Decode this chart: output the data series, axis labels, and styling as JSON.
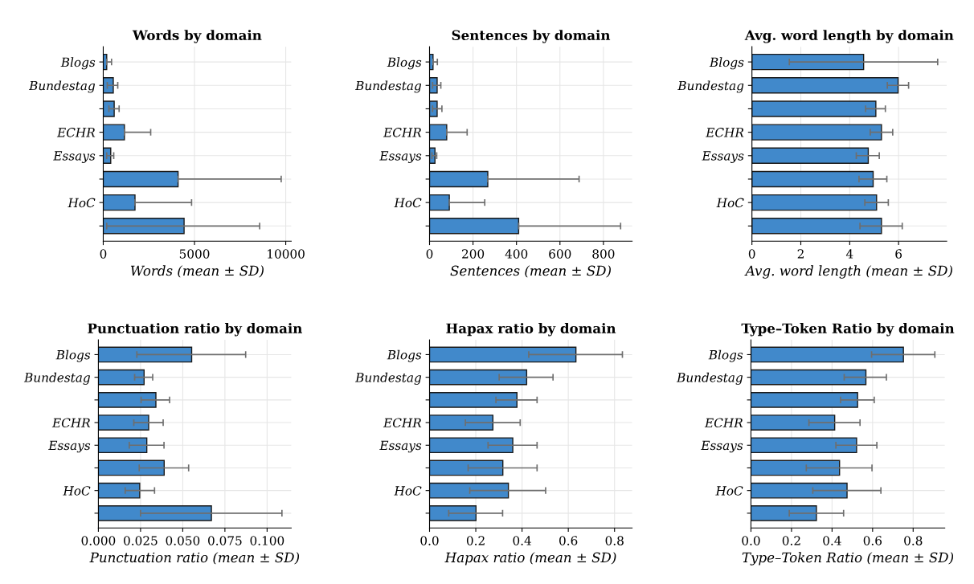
{
  "chart_data": [
    {
      "type": "bar",
      "orientation": "horizontal",
      "title": "Words by domain",
      "xlabel": "Words (mean ± SD)",
      "categories": [
        "Blogs",
        "Bundestag",
        null,
        "ECHR",
        "Essays",
        null,
        "HoC",
        null
      ],
      "color": "#4189cb",
      "values": [
        190,
        550,
        600,
        1160,
        410,
        4100,
        1740,
        4430
      ],
      "errors": [
        [
          190,
          455
        ],
        [
          220,
          795
        ],
        [
          310,
          870
        ],
        [
          1160,
          2600
        ],
        [
          190,
          575
        ],
        [
          4100,
          9750
        ],
        [
          1740,
          4840
        ],
        [
          190,
          8570
        ]
      ],
      "xlim": [
        0,
        10300
      ],
      "xticks": [
        0,
        5000,
        10000
      ],
      "grid": true
    },
    {
      "type": "bar",
      "orientation": "horizontal",
      "title": "Sentences by domain",
      "xlabel": "Sentences (mean ± SD)",
      "categories": [
        "Blogs",
        "Bundestag",
        null,
        "ECHR",
        "Essays",
        null,
        "HoC",
        null
      ],
      "color": "#4189cb",
      "values": [
        16,
        35,
        35,
        79,
        25,
        268,
        91,
        410
      ],
      "errors": [
        [
          16,
          36
        ],
        [
          14,
          52
        ],
        [
          14,
          57
        ],
        [
          79,
          173
        ],
        [
          11,
          33
        ],
        [
          268,
          688
        ],
        [
          91,
          254
        ],
        [
          410,
          879
        ]
      ],
      "xlim": [
        0,
        932
      ],
      "xticks": [
        0,
        200,
        400,
        600,
        800
      ],
      "grid": true
    },
    {
      "type": "bar",
      "orientation": "horizontal",
      "title": "Avg. word length by domain",
      "xlabel": "Avg. word length (mean ± SD)",
      "categories": [
        "Blogs",
        "Bundestag",
        null,
        "ECHR",
        "Essays",
        null,
        "HoC",
        null
      ],
      "color": "#4189cb",
      "values": [
        4.57,
        5.98,
        5.07,
        5.3,
        4.76,
        4.96,
        5.1,
        5.3
      ],
      "errors": [
        [
          1.53,
          7.6
        ],
        [
          5.54,
          6.41
        ],
        [
          4.65,
          5.46
        ],
        [
          4.84,
          5.76
        ],
        [
          4.27,
          5.21
        ],
        [
          4.38,
          5.52
        ],
        [
          4.62,
          5.58
        ],
        [
          4.42,
          6.15
        ]
      ],
      "xlim": [
        0,
        7.97
      ],
      "xticks": [
        0,
        2,
        4,
        6
      ],
      "grid": true
    },
    {
      "type": "bar",
      "orientation": "horizontal",
      "title": "Punctuation ratio by domain",
      "xlabel": "Punctuation ratio (mean ± SD)",
      "categories": [
        "Blogs",
        "Bundestag",
        null,
        "ECHR",
        "Essays",
        null,
        "HoC",
        null
      ],
      "color": "#4189cb",
      "values": [
        0.0553,
        0.0271,
        0.0341,
        0.0298,
        0.0287,
        0.039,
        0.0245,
        0.067
      ],
      "errors": [
        [
          0.0228,
          0.0873
        ],
        [
          0.0215,
          0.0322
        ],
        [
          0.0253,
          0.0422
        ],
        [
          0.021,
          0.0384
        ],
        [
          0.0183,
          0.0389
        ],
        [
          0.0242,
          0.0535
        ],
        [
          0.0159,
          0.0333
        ],
        [
          0.025,
          0.1088
        ]
      ],
      "xlim": [
        0,
        0.1143
      ],
      "xticks": [
        {
          "value": 0,
          "label": "0.000"
        },
        {
          "value": 0.025,
          "label": "0.025"
        },
        {
          "value": 0.05,
          "label": "0.050"
        },
        {
          "value": 0.075,
          "label": "0.075"
        },
        {
          "value": 0.1,
          "label": "0.100"
        }
      ],
      "grid": true
    },
    {
      "type": "bar",
      "orientation": "horizontal",
      "title": "Hapax ratio by domain",
      "xlabel": "Hapax ratio (mean ± SD)",
      "categories": [
        "Blogs",
        "Bundestag",
        null,
        "ECHR",
        "Essays",
        null,
        "HoC",
        null
      ],
      "color": "#4189cb",
      "values": [
        0.633,
        0.42,
        0.378,
        0.274,
        0.36,
        0.317,
        0.341,
        0.201
      ],
      "errors": [
        [
          0.429,
          0.834
        ],
        [
          0.301,
          0.534
        ],
        [
          0.287,
          0.465
        ],
        [
          0.155,
          0.392
        ],
        [
          0.253,
          0.465
        ],
        [
          0.167,
          0.465
        ],
        [
          0.174,
          0.502
        ],
        [
          0.083,
          0.316
        ]
      ],
      "xlim": [
        0,
        0.876
      ],
      "xticks": [
        {
          "value": 0,
          "label": "0.0"
        },
        {
          "value": 0.2,
          "label": "0.2"
        },
        {
          "value": 0.4,
          "label": "0.4"
        },
        {
          "value": 0.6,
          "label": "0.6"
        },
        {
          "value": 0.8,
          "label": "0.8"
        }
      ],
      "grid": true
    },
    {
      "type": "bar",
      "orientation": "horizontal",
      "title": "Type–Token Ratio by domain",
      "xlabel": "Type–Token Ratio (mean ± SD)",
      "categories": [
        "Blogs",
        "Bundestag",
        null,
        "ECHR",
        "Essays",
        null,
        "HoC",
        null
      ],
      "color": "#4189cb",
      "values": [
        0.752,
        0.567,
        0.526,
        0.413,
        0.521,
        0.437,
        0.474,
        0.323
      ],
      "errors": [
        [
          0.595,
          0.907
        ],
        [
          0.46,
          0.668
        ],
        [
          0.442,
          0.608
        ],
        [
          0.286,
          0.538
        ],
        [
          0.419,
          0.621
        ],
        [
          0.273,
          0.597
        ],
        [
          0.305,
          0.641
        ],
        [
          0.189,
          0.457
        ]
      ],
      "xlim": [
        0,
        0.956
      ],
      "xticks": [
        {
          "value": 0,
          "label": "0.0"
        },
        {
          "value": 0.2,
          "label": "0.2"
        },
        {
          "value": 0.4,
          "label": "0.4"
        },
        {
          "value": 0.6,
          "label": "0.6"
        },
        {
          "value": 0.8,
          "label": "0.8"
        }
      ],
      "grid": true
    }
  ]
}
